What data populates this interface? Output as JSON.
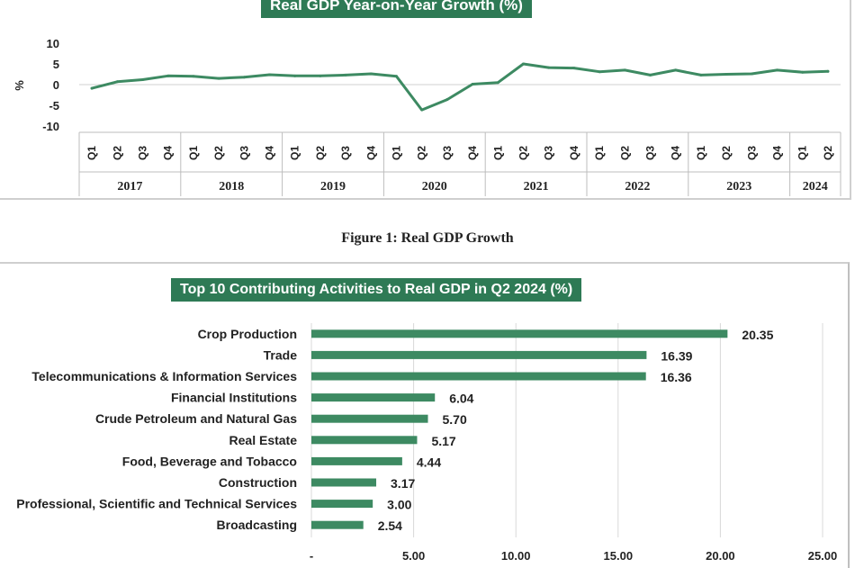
{
  "figure_caption": "Figure 1: Real GDP Growth",
  "chart_data": [
    {
      "type": "line",
      "title": "Real GDP Year-on-Year Growth (%)",
      "ylabel": "%",
      "ylim": [
        -10,
        10
      ],
      "yticks": [
        "10",
        "5",
        "0",
        "-5",
        "-10"
      ],
      "grid": false,
      "quarters": [
        "Q1",
        "Q2",
        "Q3",
        "Q4",
        "Q1",
        "Q2",
        "Q3",
        "Q4",
        "Q1",
        "Q2",
        "Q3",
        "Q4",
        "Q1",
        "Q2",
        "Q3",
        "Q4",
        "Q1",
        "Q2",
        "Q3",
        "Q4",
        "Q1",
        "Q2",
        "Q3",
        "Q4",
        "Q1",
        "Q2",
        "Q3",
        "Q4",
        "Q1",
        "Q2"
      ],
      "years": [
        {
          "label": "2017",
          "quarters": 4
        },
        {
          "label": "2018",
          "quarters": 4
        },
        {
          "label": "2019",
          "quarters": 4
        },
        {
          "label": "2020",
          "quarters": 4
        },
        {
          "label": "2021",
          "quarters": 4
        },
        {
          "label": "2022",
          "quarters": 4
        },
        {
          "label": "2023",
          "quarters": 4
        },
        {
          "label": "2024",
          "quarters": 2
        }
      ],
      "series": [
        {
          "values": [
            -0.9,
            0.7,
            1.2,
            2.1,
            2.0,
            1.5,
            1.8,
            2.4,
            2.1,
            2.1,
            2.3,
            2.6,
            2.0,
            -6.1,
            -3.6,
            0.1,
            0.5,
            5.0,
            4.1,
            4.0,
            3.1,
            3.5,
            2.3,
            3.5,
            2.3,
            2.5,
            2.6,
            3.5,
            3.0,
            3.2
          ],
          "color": "#3d8a62"
        }
      ]
    },
    {
      "type": "bar",
      "orientation": "horizontal",
      "title": "Top 10 Contributing Activities to Real GDP in Q2 2024 (%)",
      "categories": [
        "Crop Production",
        "Trade",
        "Telecommunications & Information Services",
        "Financial Institutions",
        "Crude Petroleum and Natural Gas",
        "Real Estate",
        "Food, Beverage and Tobacco",
        "Construction",
        "Professional, Scientific and Technical Services",
        "Broadcasting"
      ],
      "values": [
        20.35,
        16.39,
        16.36,
        6.04,
        5.7,
        5.17,
        4.44,
        3.17,
        3.0,
        2.54
      ],
      "value_labels": [
        "20.35",
        "16.39",
        "16.36",
        "6.04",
        "5.70",
        "5.17",
        "4.44",
        "3.17",
        "3.00",
        "2.54"
      ],
      "xlim": [
        0,
        25
      ],
      "xticks": [
        "-",
        "5.00",
        "10.00",
        "15.00",
        "20.00",
        "25.00"
      ],
      "grid": "vertical",
      "color": "#3d8a62"
    }
  ]
}
